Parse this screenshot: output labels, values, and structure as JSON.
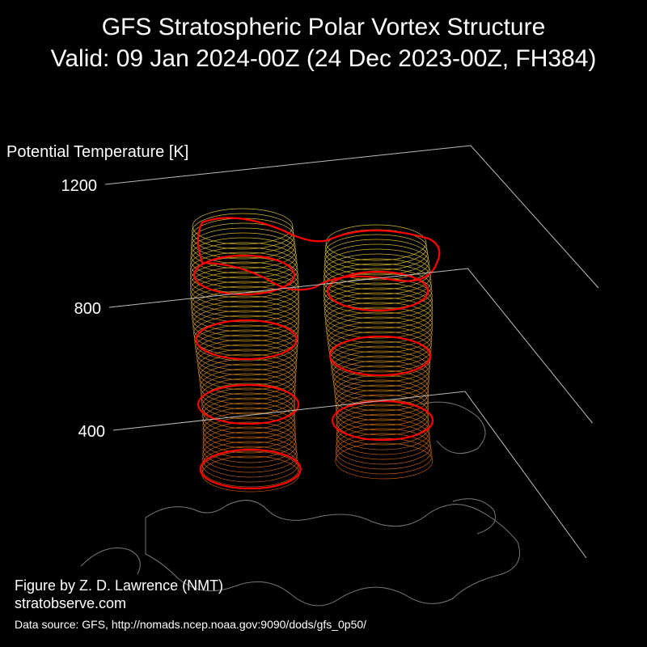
{
  "title": [
    "GFS Stratospheric Polar Vortex Structure",
    "Valid: 09 Jan 2024-00Z  (24 Dec 2023-00Z, FH384)"
  ],
  "axis": {
    "label": "Potential Temperature [K]",
    "ticks": [
      400,
      800,
      1200
    ]
  },
  "credits": [
    "Figure by Z. D. Lawrence (NMT)",
    "stratobserve.com"
  ],
  "source": "Data source: GFS, http://nomads.ncep.noaa.gov:9090/dods/gfs_0p50/"
}
